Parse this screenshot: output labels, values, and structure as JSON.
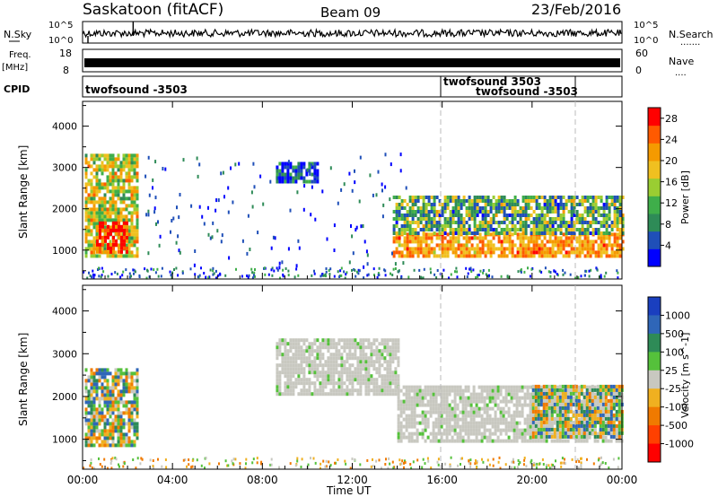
{
  "header": {
    "station": "Saskatoon (fitACF)",
    "beam": "Beam 09",
    "date": "23/Feb/2016"
  },
  "left_labels": {
    "nsky": "N.Sky",
    "nsky_ticks": [
      "10^5",
      "10^0"
    ],
    "freq": "Freq.",
    "freq_unit": "[MHz]",
    "freq_ticks": [
      "18",
      "8"
    ],
    "cpid": "CPID"
  },
  "right_labels": {
    "nsky_ticks": [
      "10^5",
      "10^0"
    ],
    "nsearch": "N.Search",
    "nsearch_dots": ".......",
    "nave_ticks": [
      "60",
      "0"
    ],
    "nave": "Nave",
    "nave_dots": "...."
  },
  "cpid_labels": [
    {
      "text": "twofsound -3503"
    },
    {
      "text": "twofsound 3503"
    },
    {
      "text": "twofsound -3503"
    }
  ],
  "colors": {
    "power_scale": [
      "#0000ff",
      "#1f4fb8",
      "#2e8b57",
      "#3fae4a",
      "#9acd32",
      "#f0c020",
      "#f59a00",
      "#ff5a00",
      "#ff0000"
    ],
    "velocity_scale": [
      "#1a3fbf",
      "#2f66b8",
      "#2e8b57",
      "#55c13b",
      "#c8c8c0",
      "#f0b020",
      "#f07a00",
      "#ff4000",
      "#ff0000"
    ]
  },
  "chart_data": [
    {
      "type": "heatmap",
      "name": "power",
      "ylabel": "Slant Range [km]",
      "yticks": [
        "1000",
        "2000",
        "3000",
        "4000"
      ],
      "ylim": [
        300,
        4600
      ],
      "xlim": [
        0,
        24
      ],
      "colorbar": {
        "label": "Power [dB]",
        "ticks": [
          "4",
          "8",
          "12",
          "16",
          "20",
          "24",
          "28"
        ],
        "range": [
          0,
          30
        ]
      },
      "features": [
        {
          "t0": 0.1,
          "t1": 2.4,
          "r0": 800,
          "r1": 3300,
          "level": 0.55
        },
        {
          "t0": 0.6,
          "t1": 2.0,
          "r0": 900,
          "r1": 1600,
          "level": 0.95
        },
        {
          "t0": 8.6,
          "t1": 10.5,
          "r0": 2600,
          "r1": 3050,
          "level": 0.15
        },
        {
          "t0": 13.8,
          "t1": 24.0,
          "r0": 800,
          "r1": 1350,
          "level": 0.9
        },
        {
          "t0": 13.8,
          "t1": 24.0,
          "r0": 1350,
          "r1": 2300,
          "level": 0.45
        }
      ]
    },
    {
      "type": "heatmap",
      "name": "velocity",
      "ylabel": "Slant Range [km]",
      "yticks": [
        "1000",
        "2000",
        "3000",
        "4000"
      ],
      "ylim": [
        300,
        4600
      ],
      "xlim": [
        0,
        24
      ],
      "xticks": [
        "00:00",
        "04:00",
        "08:00",
        "12:00",
        "16:00",
        "20:00",
        "00:00"
      ],
      "xlabel": "Time UT",
      "colorbar": {
        "label": "Velocity [m s^-1]",
        "ticks": [
          "1000",
          "500",
          "100",
          "25",
          "-25",
          "-100",
          "-500",
          "-1000"
        ],
        "range": [
          -1000,
          1000
        ]
      },
      "features": [
        {
          "t0": 0.1,
          "t1": 2.4,
          "r0": 800,
          "r1": 2600,
          "level": "mixed-green"
        },
        {
          "t0": 8.6,
          "t1": 14.0,
          "r0": 2000,
          "r1": 3300,
          "level": "ground-gray"
        },
        {
          "t0": 14.0,
          "t1": 24.0,
          "r0": 900,
          "r1": 2200,
          "level": "ground-gray"
        },
        {
          "t0": 20.0,
          "t1": 24.0,
          "r0": 1000,
          "r1": 2200,
          "level": "mixed-green"
        }
      ]
    }
  ]
}
